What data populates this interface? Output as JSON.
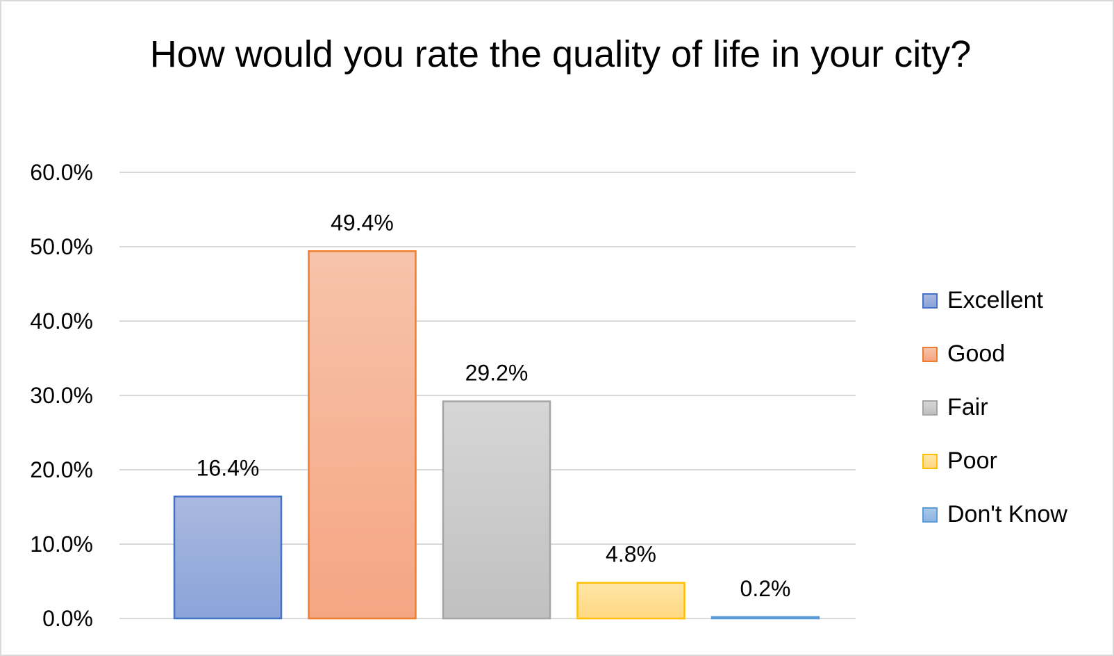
{
  "chart_data": {
    "type": "bar",
    "title": "How would you rate the quality of life in your city?",
    "categories": [
      "Excellent",
      "Good",
      "Fair",
      "Poor",
      "Don't Know"
    ],
    "values": [
      16.4,
      49.4,
      29.2,
      4.8,
      0.2
    ],
    "data_labels": [
      "16.4%",
      "49.4%",
      "29.2%",
      "4.8%",
      "0.2%"
    ],
    "ylim": [
      0,
      60
    ],
    "yticks": [
      0,
      10,
      20,
      30,
      40,
      50,
      60
    ],
    "ytick_labels": [
      "0.0%",
      "10.0%",
      "20.0%",
      "30.0%",
      "40.0%",
      "50.0%",
      "60.0%"
    ],
    "xlabel": "",
    "ylabel": "",
    "grid": true,
    "legend_position": "right",
    "colors": {
      "Excellent": {
        "top": "#aab9df",
        "bottom": "#8aa3d9",
        "border": "#4472c4"
      },
      "Good": {
        "top": "#f7c3ab",
        "bottom": "#f5a582",
        "border": "#ed7d31"
      },
      "Fair": {
        "top": "#d6d6d6",
        "bottom": "#c0c0c0",
        "border": "#a5a5a5"
      },
      "Poor": {
        "top": "#ffe6a6",
        "bottom": "#ffd882",
        "border": "#ffc000"
      },
      "Don't Know": {
        "top": "#a9c8ea",
        "bottom": "#8db4e2",
        "border": "#5b9bd5"
      }
    },
    "gridline_color": "#d9d9d9"
  }
}
